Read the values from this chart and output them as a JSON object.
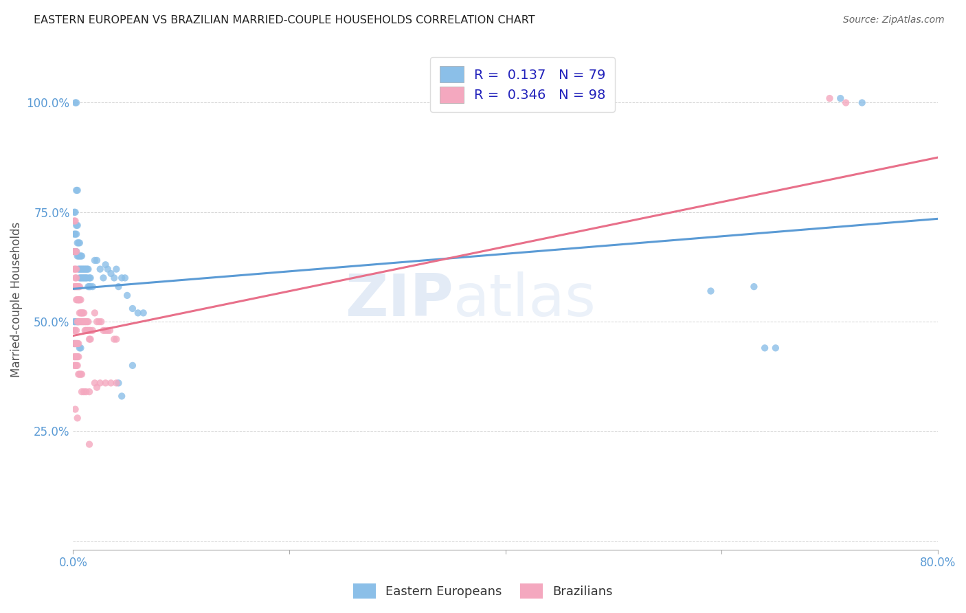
{
  "title": "EASTERN EUROPEAN VS BRAZILIAN MARRIED-COUPLE HOUSEHOLDS CORRELATION CHART",
  "source": "Source: ZipAtlas.com",
  "ylabel": "Married-couple Households",
  "xlim": [
    0.0,
    0.8
  ],
  "ylim": [
    -0.02,
    1.12
  ],
  "yticks": [
    0.0,
    0.25,
    0.5,
    0.75,
    1.0
  ],
  "ytick_labels": [
    "",
    "25.0%",
    "50.0%",
    "75.0%",
    "100.0%"
  ],
  "xticks": [
    0.0,
    0.2,
    0.4,
    0.6,
    0.8
  ],
  "xtick_labels": [
    "0.0%",
    "",
    "",
    "",
    "80.0%"
  ],
  "watermark": "ZIPatlas",
  "blue_R": 0.137,
  "blue_N": 79,
  "pink_R": 0.346,
  "pink_N": 98,
  "blue_color": "#8bbfe8",
  "pink_color": "#f4a8bf",
  "blue_line_color": "#5b9bd5",
  "pink_line_color": "#e8708a",
  "tick_color": "#5b9bd5",
  "legend_R_color": "#2222bb",
  "background_color": "#ffffff",
  "blue_line_x": [
    0.0,
    0.8
  ],
  "blue_line_y": [
    0.575,
    0.735
  ],
  "pink_line_x": [
    0.0,
    0.8
  ],
  "pink_line_y": [
    0.468,
    0.875
  ],
  "blue_points": [
    [
      0.002,
      1.0
    ],
    [
      0.003,
      1.0
    ],
    [
      0.001,
      0.66
    ],
    [
      0.002,
      0.66
    ],
    [
      0.003,
      0.66
    ],
    [
      0.001,
      0.75
    ],
    [
      0.002,
      0.75
    ],
    [
      0.003,
      0.72
    ],
    [
      0.004,
      0.72
    ],
    [
      0.003,
      0.8
    ],
    [
      0.004,
      0.8
    ],
    [
      0.001,
      0.7
    ],
    [
      0.002,
      0.7
    ],
    [
      0.003,
      0.7
    ],
    [
      0.004,
      0.68
    ],
    [
      0.005,
      0.68
    ],
    [
      0.006,
      0.68
    ],
    [
      0.004,
      0.65
    ],
    [
      0.005,
      0.65
    ],
    [
      0.006,
      0.65
    ],
    [
      0.005,
      0.62
    ],
    [
      0.006,
      0.62
    ],
    [
      0.007,
      0.62
    ],
    [
      0.007,
      0.65
    ],
    [
      0.008,
      0.65
    ],
    [
      0.008,
      0.62
    ],
    [
      0.009,
      0.62
    ],
    [
      0.006,
      0.6
    ],
    [
      0.007,
      0.6
    ],
    [
      0.008,
      0.6
    ],
    [
      0.009,
      0.6
    ],
    [
      0.01,
      0.6
    ],
    [
      0.01,
      0.62
    ],
    [
      0.011,
      0.62
    ],
    [
      0.011,
      0.6
    ],
    [
      0.012,
      0.6
    ],
    [
      0.012,
      0.62
    ],
    [
      0.013,
      0.62
    ],
    [
      0.013,
      0.6
    ],
    [
      0.014,
      0.58
    ],
    [
      0.014,
      0.62
    ],
    [
      0.015,
      0.6
    ],
    [
      0.015,
      0.58
    ],
    [
      0.016,
      0.58
    ],
    [
      0.016,
      0.6
    ],
    [
      0.018,
      0.58
    ],
    [
      0.02,
      0.64
    ],
    [
      0.022,
      0.64
    ],
    [
      0.025,
      0.62
    ],
    [
      0.028,
      0.6
    ],
    [
      0.03,
      0.63
    ],
    [
      0.032,
      0.62
    ],
    [
      0.035,
      0.61
    ],
    [
      0.038,
      0.6
    ],
    [
      0.04,
      0.62
    ],
    [
      0.042,
      0.58
    ],
    [
      0.045,
      0.6
    ],
    [
      0.048,
      0.6
    ],
    [
      0.05,
      0.56
    ],
    [
      0.055,
      0.53
    ],
    [
      0.06,
      0.52
    ],
    [
      0.065,
      0.52
    ],
    [
      0.001,
      0.5
    ],
    [
      0.002,
      0.5
    ],
    [
      0.003,
      0.5
    ],
    [
      0.004,
      0.5
    ],
    [
      0.005,
      0.5
    ],
    [
      0.001,
      0.45
    ],
    [
      0.002,
      0.45
    ],
    [
      0.003,
      0.45
    ],
    [
      0.004,
      0.45
    ],
    [
      0.006,
      0.44
    ],
    [
      0.007,
      0.44
    ],
    [
      0.042,
      0.36
    ],
    [
      0.045,
      0.33
    ],
    [
      0.055,
      0.4
    ],
    [
      0.59,
      0.57
    ],
    [
      0.63,
      0.58
    ],
    [
      0.64,
      0.44
    ],
    [
      0.65,
      0.44
    ],
    [
      0.71,
      1.01
    ],
    [
      0.73,
      1.0
    ]
  ],
  "pink_points": [
    [
      0.001,
      0.73
    ],
    [
      0.002,
      0.73
    ],
    [
      0.001,
      0.66
    ],
    [
      0.002,
      0.66
    ],
    [
      0.003,
      0.66
    ],
    [
      0.001,
      0.62
    ],
    [
      0.002,
      0.62
    ],
    [
      0.003,
      0.62
    ],
    [
      0.002,
      0.6
    ],
    [
      0.003,
      0.6
    ],
    [
      0.001,
      0.58
    ],
    [
      0.002,
      0.58
    ],
    [
      0.003,
      0.58
    ],
    [
      0.003,
      0.55
    ],
    [
      0.004,
      0.55
    ],
    [
      0.005,
      0.55
    ],
    [
      0.004,
      0.58
    ],
    [
      0.005,
      0.58
    ],
    [
      0.006,
      0.58
    ],
    [
      0.005,
      0.55
    ],
    [
      0.006,
      0.55
    ],
    [
      0.007,
      0.55
    ],
    [
      0.006,
      0.52
    ],
    [
      0.007,
      0.52
    ],
    [
      0.008,
      0.52
    ],
    [
      0.004,
      0.5
    ],
    [
      0.005,
      0.5
    ],
    [
      0.006,
      0.5
    ],
    [
      0.007,
      0.5
    ],
    [
      0.008,
      0.5
    ],
    [
      0.008,
      0.52
    ],
    [
      0.009,
      0.52
    ],
    [
      0.009,
      0.5
    ],
    [
      0.01,
      0.5
    ],
    [
      0.01,
      0.52
    ],
    [
      0.011,
      0.5
    ],
    [
      0.011,
      0.48
    ],
    [
      0.012,
      0.48
    ],
    [
      0.012,
      0.5
    ],
    [
      0.013,
      0.5
    ],
    [
      0.013,
      0.48
    ],
    [
      0.014,
      0.48
    ],
    [
      0.014,
      0.5
    ],
    [
      0.015,
      0.48
    ],
    [
      0.015,
      0.46
    ],
    [
      0.016,
      0.46
    ],
    [
      0.016,
      0.48
    ],
    [
      0.018,
      0.48
    ],
    [
      0.001,
      0.48
    ],
    [
      0.002,
      0.48
    ],
    [
      0.003,
      0.48
    ],
    [
      0.001,
      0.45
    ],
    [
      0.002,
      0.45
    ],
    [
      0.003,
      0.45
    ],
    [
      0.004,
      0.45
    ],
    [
      0.005,
      0.45
    ],
    [
      0.001,
      0.42
    ],
    [
      0.002,
      0.42
    ],
    [
      0.003,
      0.42
    ],
    [
      0.004,
      0.42
    ],
    [
      0.005,
      0.42
    ],
    [
      0.001,
      0.4
    ],
    [
      0.002,
      0.4
    ],
    [
      0.003,
      0.4
    ],
    [
      0.004,
      0.4
    ],
    [
      0.005,
      0.38
    ],
    [
      0.006,
      0.38
    ],
    [
      0.007,
      0.38
    ],
    [
      0.008,
      0.38
    ],
    [
      0.02,
      0.52
    ],
    [
      0.022,
      0.5
    ],
    [
      0.024,
      0.5
    ],
    [
      0.026,
      0.5
    ],
    [
      0.028,
      0.48
    ],
    [
      0.03,
      0.48
    ],
    [
      0.032,
      0.48
    ],
    [
      0.034,
      0.48
    ],
    [
      0.038,
      0.46
    ],
    [
      0.04,
      0.46
    ],
    [
      0.008,
      0.34
    ],
    [
      0.01,
      0.34
    ],
    [
      0.012,
      0.34
    ],
    [
      0.015,
      0.34
    ],
    [
      0.02,
      0.36
    ],
    [
      0.022,
      0.35
    ],
    [
      0.025,
      0.36
    ],
    [
      0.03,
      0.36
    ],
    [
      0.035,
      0.36
    ],
    [
      0.04,
      0.36
    ],
    [
      0.002,
      0.3
    ],
    [
      0.004,
      0.28
    ],
    [
      0.015,
      0.22
    ],
    [
      0.7,
      1.01
    ],
    [
      0.715,
      1.0
    ]
  ]
}
